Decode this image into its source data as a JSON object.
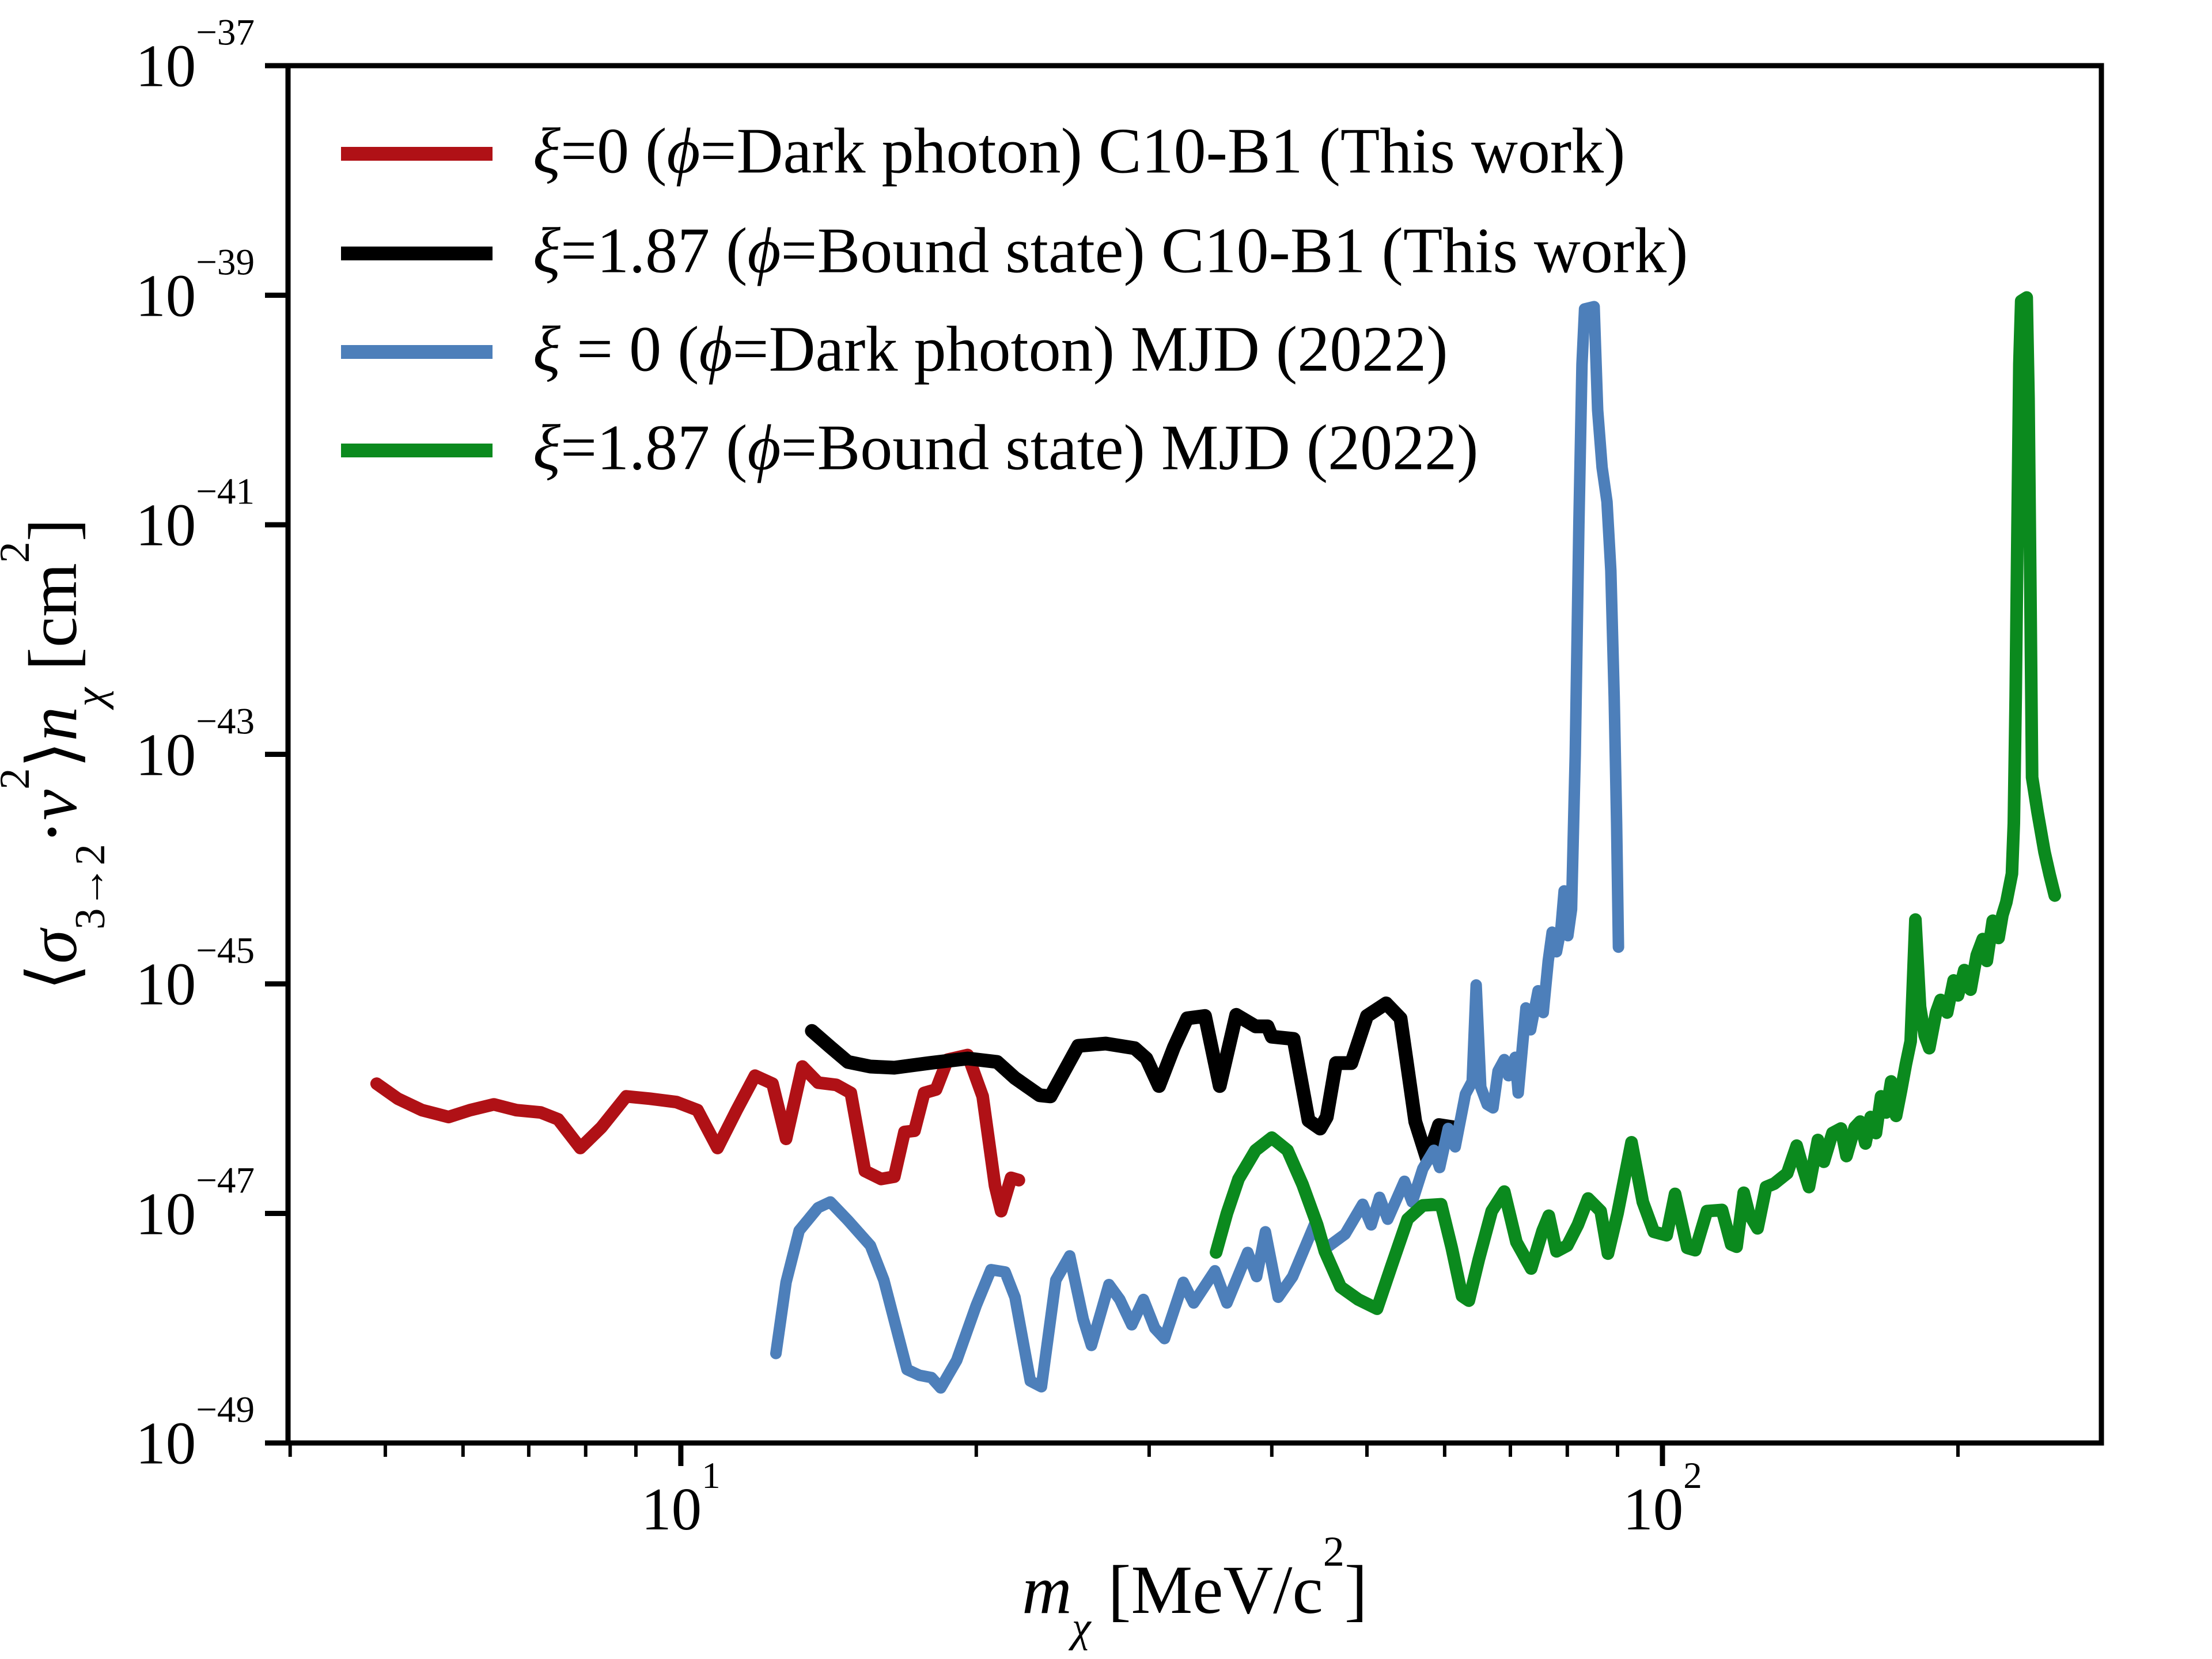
{
  "figure": {
    "background_color": "#ffffff",
    "title": "",
    "xlabel": "*m*_{*χ*} [MeV/c^{2}]",
    "ylabel": "⟨*σ*_{3→2}⋅*v*^{2}⟩*n*_{*χ*} [cm^{2}]"
  },
  "chart_data": {
    "type": "line",
    "x_scale": "log",
    "y_scale": "log",
    "xlabel": "*m*_{*χ*} [MeV/c^{2}]",
    "ylabel": "⟨*σ*_{3→2}⋅*v*^{2}⟩*n*_{*χ*} [cm^{2}]",
    "xlim": [
      3.98,
      280
    ],
    "ylim_log10": [
      -49,
      -37
    ],
    "grid": false,
    "x_major_ticks": [
      {
        "value": 10,
        "label": "10^{1}"
      },
      {
        "value": 100,
        "label": "10^{2}"
      }
    ],
    "x_minor_ticks": [
      4,
      5,
      6,
      7,
      8,
      9,
      20,
      30,
      40,
      50,
      60,
      70,
      80,
      90,
      200
    ],
    "y_major_ticks": [
      {
        "log10": -37,
        "label": "10^{−37}"
      },
      {
        "log10": -39,
        "label": "10^{−39}"
      },
      {
        "log10": -41,
        "label": "10^{−41}"
      },
      {
        "log10": -43,
        "label": "10^{−43}"
      },
      {
        "log10": -45,
        "label": "10^{−45}"
      },
      {
        "log10": -47,
        "label": "10^{−47}"
      },
      {
        "log10": -49,
        "label": "10^{−49}"
      }
    ],
    "legend": {
      "position": "upper-left",
      "frame": false,
      "entries": [
        {
          "id": "xi0_c10b1",
          "label": "*ξ*=0 (*ϕ*=Dark photon) C10-B1 (This work)",
          "color": "#b01116"
        },
        {
          "id": "xi187_c10b1",
          "label": "*ξ*=1.87 (*ϕ*=Bound state) C10-B1 (This work)",
          "color": "#000000"
        },
        {
          "id": "xi0_mjd",
          "label": "*ξ* = 0 (*ϕ*=Dark photon) MJD (2022)",
          "color": "#4d7fba"
        },
        {
          "id": "xi187_mjd",
          "label": "*ξ*=1.87 (*ϕ*=Bound state) MJD (2022)",
          "color": "#0b8a1e"
        }
      ]
    },
    "series": [
      {
        "id": "xi0_c10b1",
        "name": "ξ=0 (ϕ=Dark photon) C10-B1 (This work)",
        "color": "#b01116",
        "line_width": 22,
        "points_m_log10y": [
          [
            4.9,
            -45.87
          ],
          [
            5.15,
            -46.0
          ],
          [
            5.45,
            -46.1
          ],
          [
            5.8,
            -46.16
          ],
          [
            6.1,
            -46.1
          ],
          [
            6.45,
            -46.05
          ],
          [
            6.8,
            -46.1
          ],
          [
            7.2,
            -46.12
          ],
          [
            7.5,
            -46.18
          ],
          [
            7.9,
            -46.43
          ],
          [
            8.3,
            -46.25
          ],
          [
            8.8,
            -45.98
          ],
          [
            9.3,
            -46.0
          ],
          [
            9.9,
            -46.03
          ],
          [
            10.4,
            -46.1
          ],
          [
            10.9,
            -46.43
          ],
          [
            11.4,
            -46.1
          ],
          [
            11.9,
            -45.8
          ],
          [
            12.4,
            -45.87
          ],
          [
            12.8,
            -46.35
          ],
          [
            13.3,
            -45.72
          ],
          [
            13.8,
            -45.86
          ],
          [
            14.4,
            -45.88
          ],
          [
            14.9,
            -45.95
          ],
          [
            15.4,
            -46.63
          ],
          [
            16.0,
            -46.7
          ],
          [
            16.5,
            -46.68
          ],
          [
            16.9,
            -46.29
          ],
          [
            17.3,
            -46.28
          ],
          [
            17.7,
            -45.95
          ],
          [
            18.2,
            -45.92
          ],
          [
            18.7,
            -45.66
          ],
          [
            19.6,
            -45.62
          ],
          [
            20.3,
            -45.98
          ],
          [
            20.9,
            -46.76
          ],
          [
            21.2,
            -46.98
          ],
          [
            21.7,
            -46.69
          ],
          [
            22.1,
            -46.71
          ]
        ]
      },
      {
        "id": "xi187_c10b1",
        "name": "ξ=1.87 (ϕ=Bound state) C10-B1 (This work)",
        "color": "#000000",
        "line_width": 24,
        "points_m_log10y": [
          [
            13.6,
            -45.41
          ],
          [
            14.2,
            -45.55
          ],
          [
            14.8,
            -45.68
          ],
          [
            15.6,
            -45.72
          ],
          [
            16.5,
            -45.73
          ],
          [
            17.9,
            -45.69
          ],
          [
            19.6,
            -45.65
          ],
          [
            21.0,
            -45.68
          ],
          [
            21.9,
            -45.82
          ],
          [
            23.2,
            -45.97
          ],
          [
            23.8,
            -45.98
          ],
          [
            25.4,
            -45.54
          ],
          [
            27.1,
            -45.52
          ],
          [
            29.0,
            -45.56
          ],
          [
            29.8,
            -45.65
          ],
          [
            30.7,
            -45.89
          ],
          [
            31.8,
            -45.55
          ],
          [
            32.8,
            -45.3
          ],
          [
            34.2,
            -45.28
          ],
          [
            35.4,
            -45.89
          ],
          [
            36.8,
            -45.27
          ],
          [
            38.5,
            -45.37
          ],
          [
            39.6,
            -45.37
          ],
          [
            40.0,
            -45.46
          ],
          [
            42.1,
            -45.48
          ],
          [
            43.6,
            -46.19
          ],
          [
            44.8,
            -46.26
          ],
          [
            45.5,
            -46.16
          ],
          [
            46.5,
            -45.69
          ],
          [
            48.2,
            -45.69
          ],
          [
            50.0,
            -45.28
          ],
          [
            52.3,
            -45.17
          ],
          [
            54.1,
            -45.3
          ],
          [
            56.0,
            -46.2
          ],
          [
            57.6,
            -46.53
          ],
          [
            59.2,
            -46.23
          ],
          [
            61.3,
            -46.25
          ]
        ]
      },
      {
        "id": "xi0_mjd",
        "name": "ξ = 0 (ϕ=Dark photon) MJD (2022)",
        "color": "#4d7fba",
        "line_width": 20,
        "points_m_log10y": [
          [
            12.5,
            -48.22
          ],
          [
            12.8,
            -47.6
          ],
          [
            13.2,
            -47.15
          ],
          [
            13.8,
            -46.95
          ],
          [
            14.2,
            -46.9
          ],
          [
            14.8,
            -47.06
          ],
          [
            15.6,
            -47.28
          ],
          [
            16.1,
            -47.58
          ],
          [
            17.0,
            -48.36
          ],
          [
            17.5,
            -48.41
          ],
          [
            18.0,
            -48.43
          ],
          [
            18.4,
            -48.52
          ],
          [
            19.1,
            -48.28
          ],
          [
            20.0,
            -47.8
          ],
          [
            20.7,
            -47.49
          ],
          [
            21.4,
            -47.51
          ],
          [
            21.9,
            -47.73
          ],
          [
            22.7,
            -48.46
          ],
          [
            23.3,
            -48.51
          ],
          [
            24.1,
            -47.58
          ],
          [
            24.9,
            -47.37
          ],
          [
            25.7,
            -47.92
          ],
          [
            26.2,
            -48.15
          ],
          [
            27.3,
            -47.62
          ],
          [
            28.0,
            -47.75
          ],
          [
            28.8,
            -47.97
          ],
          [
            29.6,
            -47.75
          ],
          [
            30.4,
            -48.0
          ],
          [
            31.1,
            -48.09
          ],
          [
            32.5,
            -47.6
          ],
          [
            33.3,
            -47.78
          ],
          [
            35.0,
            -47.5
          ],
          [
            36.0,
            -47.78
          ],
          [
            37.8,
            -47.34
          ],
          [
            38.6,
            -47.55
          ],
          [
            39.4,
            -47.16
          ],
          [
            40.6,
            -47.73
          ],
          [
            42.0,
            -47.55
          ],
          [
            44.2,
            -47.1
          ],
          [
            45.3,
            -47.31
          ],
          [
            47.5,
            -47.18
          ],
          [
            49.5,
            -46.92
          ],
          [
            50.5,
            -47.1
          ],
          [
            51.5,
            -46.86
          ],
          [
            52.5,
            -47.05
          ],
          [
            54.6,
            -46.72
          ],
          [
            55.6,
            -46.9
          ],
          [
            57.0,
            -46.61
          ],
          [
            58.5,
            -46.45
          ],
          [
            59.3,
            -46.6
          ],
          [
            60.5,
            -46.26
          ],
          [
            61.5,
            -46.42
          ],
          [
            63.0,
            -45.96
          ],
          [
            64.0,
            -45.85
          ],
          [
            64.6,
            -45.01
          ],
          [
            65.3,
            -45.9
          ],
          [
            66.3,
            -46.05
          ],
          [
            67.2,
            -46.08
          ],
          [
            68.0,
            -45.76
          ],
          [
            69.0,
            -45.66
          ],
          [
            69.7,
            -45.8
          ],
          [
            70.8,
            -45.64
          ],
          [
            71.3,
            -45.95
          ],
          [
            72.6,
            -45.21
          ],
          [
            73.4,
            -45.4
          ],
          [
            74.7,
            -45.06
          ],
          [
            75.6,
            -45.25
          ],
          [
            76.5,
            -44.8
          ],
          [
            77.2,
            -44.55
          ],
          [
            78.0,
            -44.72
          ],
          [
            78.8,
            -44.52
          ],
          [
            79.4,
            -44.19
          ],
          [
            80.1,
            -44.58
          ],
          [
            80.8,
            -44.35
          ],
          [
            81.5,
            -43.0
          ],
          [
            82.2,
            -41.0
          ],
          [
            82.8,
            -39.6
          ],
          [
            83.3,
            -39.12
          ],
          [
            85.2,
            -39.1
          ],
          [
            85.9,
            -40.0
          ],
          [
            86.8,
            -40.5
          ],
          [
            87.8,
            -40.8
          ],
          [
            88.6,
            -41.4
          ],
          [
            89.3,
            -42.5
          ],
          [
            89.8,
            -43.6
          ],
          [
            90.2,
            -44.68
          ]
        ]
      },
      {
        "id": "xi187_mjd",
        "name": "ξ=1.87 (ϕ=Bound state) MJD (2022)",
        "color": "#0b8a1e",
        "line_width": 22,
        "points_m_log10y": [
          [
            35.1,
            -47.34
          ],
          [
            36.0,
            -47.0
          ],
          [
            37.0,
            -46.7
          ],
          [
            38.5,
            -46.45
          ],
          [
            40.0,
            -46.34
          ],
          [
            41.5,
            -46.45
          ],
          [
            43.0,
            -46.75
          ],
          [
            44.5,
            -47.1
          ],
          [
            45.3,
            -47.33
          ],
          [
            47.0,
            -47.64
          ],
          [
            49.0,
            -47.75
          ],
          [
            51.2,
            -47.83
          ],
          [
            53.0,
            -47.45
          ],
          [
            55.0,
            -47.05
          ],
          [
            57.0,
            -46.93
          ],
          [
            59.5,
            -46.92
          ],
          [
            61.0,
            -47.3
          ],
          [
            62.5,
            -47.72
          ],
          [
            63.5,
            -47.76
          ],
          [
            65.0,
            -47.4
          ],
          [
            67.0,
            -46.98
          ],
          [
            69.0,
            -46.81
          ],
          [
            71.0,
            -47.25
          ],
          [
            73.5,
            -47.48
          ],
          [
            75.5,
            -47.15
          ],
          [
            76.6,
            -47.02
          ],
          [
            78.0,
            -47.33
          ],
          [
            80.0,
            -47.28
          ],
          [
            82.0,
            -47.1
          ],
          [
            84.0,
            -46.87
          ],
          [
            86.5,
            -46.98
          ],
          [
            88.0,
            -47.35
          ],
          [
            90.0,
            -47.0
          ],
          [
            93.0,
            -46.38
          ],
          [
            95.5,
            -46.9
          ],
          [
            98.0,
            -47.16
          ],
          [
            101,
            -47.19
          ],
          [
            103,
            -46.83
          ],
          [
            106,
            -47.3
          ],
          [
            108,
            -47.32
          ],
          [
            111,
            -46.98
          ],
          [
            115,
            -46.97
          ],
          [
            117.5,
            -47.27
          ],
          [
            119,
            -47.29
          ],
          [
            121,
            -46.82
          ],
          [
            122.5,
            -47.0
          ],
          [
            125,
            -47.13
          ],
          [
            127.5,
            -46.77
          ],
          [
            130,
            -46.74
          ],
          [
            134,
            -46.65
          ],
          [
            137,
            -46.41
          ],
          [
            139,
            -46.6
          ],
          [
            141,
            -46.77
          ],
          [
            144,
            -46.36
          ],
          [
            146,
            -46.55
          ],
          [
            149,
            -46.3
          ],
          [
            152,
            -46.26
          ],
          [
            154,
            -46.5
          ],
          [
            157,
            -46.25
          ],
          [
            159,
            -46.2
          ],
          [
            161,
            -46.39
          ],
          [
            163,
            -46.16
          ],
          [
            165,
            -46.3
          ],
          [
            167,
            -45.98
          ],
          [
            169,
            -46.12
          ],
          [
            171,
            -45.85
          ],
          [
            173,
            -46.15
          ],
          [
            175,
            -45.93
          ],
          [
            177,
            -45.7
          ],
          [
            179,
            -45.5
          ],
          [
            181,
            -44.44
          ],
          [
            183,
            -45.2
          ],
          [
            185,
            -45.45
          ],
          [
            187,
            -45.56
          ],
          [
            190,
            -45.25
          ],
          [
            192,
            -45.14
          ],
          [
            195,
            -45.25
          ],
          [
            198,
            -44.97
          ],
          [
            200,
            -45.1
          ],
          [
            203,
            -44.88
          ],
          [
            206,
            -45.05
          ],
          [
            209,
            -44.75
          ],
          [
            212,
            -44.61
          ],
          [
            214,
            -44.8
          ],
          [
            217,
            -44.45
          ],
          [
            220,
            -44.6
          ],
          [
            222,
            -44.4
          ],
          [
            224,
            -44.29
          ],
          [
            227,
            -44.04
          ],
          [
            228,
            -43.6
          ],
          [
            229,
            -42.5
          ],
          [
            230,
            -41.0
          ],
          [
            231,
            -39.6
          ],
          [
            232,
            -39.05
          ],
          [
            235,
            -39.02
          ],
          [
            236,
            -39.9
          ],
          [
            237,
            -41.5
          ],
          [
            238,
            -43.2
          ],
          [
            241,
            -43.5
          ],
          [
            245,
            -43.85
          ],
          [
            248,
            -44.05
          ],
          [
            251,
            -44.23
          ]
        ]
      }
    ]
  }
}
